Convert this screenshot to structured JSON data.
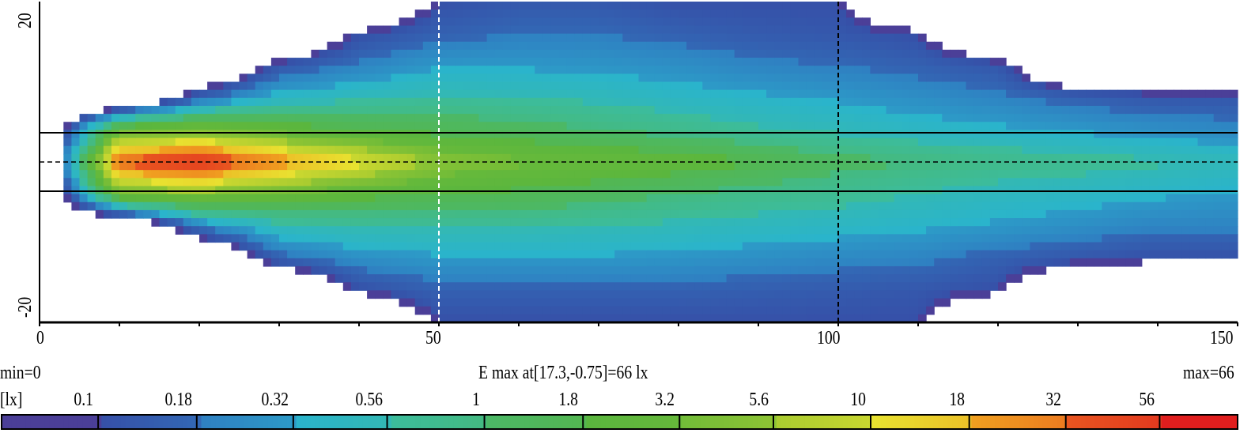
{
  "chart_data": {
    "type": "heatmap",
    "title": "",
    "x_ticks": [
      0,
      50,
      100,
      150
    ],
    "y_ticks": [
      20,
      -20
    ],
    "xlim": [
      0,
      150
    ],
    "ylim": [
      -20,
      20
    ],
    "vertical_dashed_lines_x": [
      50,
      100
    ],
    "horizontal_solid_lines_y": [
      3.65,
      -3.65
    ],
    "horizontal_dashed_line_y": 0,
    "grid_x": [
      0,
      10,
      20,
      30,
      40,
      50,
      60,
      70,
      80,
      90,
      100,
      110,
      120,
      130,
      140,
      150
    ],
    "grid_y": [
      20,
      16,
      12,
      8,
      4,
      0,
      -4,
      -8,
      -12,
      -16,
      -20
    ],
    "values_lx": [
      [
        0,
        0,
        0,
        0,
        0,
        0.1,
        0.12,
        0.12,
        0.1,
        0.1,
        0.1,
        0,
        0,
        0,
        0,
        0
      ],
      [
        0,
        0,
        0,
        0,
        0.1,
        0.15,
        0.18,
        0.18,
        0.15,
        0.13,
        0.12,
        0.1,
        0,
        0,
        0,
        0
      ],
      [
        0,
        0,
        0,
        0.12,
        0.2,
        0.3,
        0.3,
        0.28,
        0.25,
        0.2,
        0.18,
        0.15,
        0.12,
        0,
        0,
        0
      ],
      [
        0,
        0,
        0.15,
        0.4,
        0.5,
        0.6,
        0.55,
        0.5,
        0.4,
        0.35,
        0.3,
        0.25,
        0.2,
        0.15,
        0.12,
        0.12
      ],
      [
        0,
        3,
        4,
        2.5,
        1.8,
        1.5,
        1.3,
        1,
        0.8,
        0.6,
        0.5,
        0.4,
        0.35,
        0.3,
        0.25,
        0.22
      ],
      [
        0,
        40,
        60,
        25,
        12,
        5,
        3.5,
        3,
        2.5,
        1.8,
        1.2,
        1,
        0.8,
        0.7,
        0.6,
        0.5
      ],
      [
        0,
        3.5,
        4.5,
        3,
        2.2,
        1.8,
        1.6,
        1.3,
        1,
        0.8,
        0.7,
        0.55,
        0.45,
        0.4,
        0.35,
        0.3
      ],
      [
        0,
        0,
        0.2,
        0.5,
        0.6,
        0.6,
        0.6,
        0.55,
        0.5,
        0.45,
        0.4,
        0.35,
        0.3,
        0.25,
        0.2,
        0.2
      ],
      [
        0,
        0,
        0,
        0.15,
        0.25,
        0.3,
        0.3,
        0.3,
        0.28,
        0.25,
        0.22,
        0.2,
        0.15,
        0.12,
        0.1,
        0.1
      ],
      [
        0,
        0,
        0,
        0,
        0.1,
        0.15,
        0.15,
        0.15,
        0.15,
        0.14,
        0.13,
        0.12,
        0.1,
        0,
        0,
        0
      ],
      [
        0,
        0,
        0,
        0,
        0,
        0.1,
        0.1,
        0.1,
        0.1,
        0.1,
        0.1,
        0.1,
        0,
        0,
        0,
        0
      ]
    ],
    "min_label": "min=0",
    "max_label": "max=66",
    "max_info": "E  max at[17.3,-0.75]=66 lx",
    "max_point": {
      "x": 17.3,
      "y": -0.75,
      "value": 66
    },
    "colorbar": {
      "unit_label": "[lx]",
      "levels": [
        0.1,
        0.18,
        0.32,
        0.56,
        1,
        1.8,
        3.2,
        5.6,
        10,
        18,
        32,
        56
      ],
      "level_labels": [
        "0.1",
        "0.18",
        "0.32",
        "0.56",
        "1",
        "1.8",
        "3.2",
        "5.6",
        "10",
        "18",
        "32",
        "56"
      ],
      "colors": [
        "#4b3f98",
        "#3650a8",
        "#2f80c2",
        "#2ab4cc",
        "#3cbc9c",
        "#4cb866",
        "#5ab63e",
        "#72bc38",
        "#aacc30",
        "#e8e230",
        "#f0a020",
        "#e85520",
        "#e01e1e"
      ]
    }
  }
}
